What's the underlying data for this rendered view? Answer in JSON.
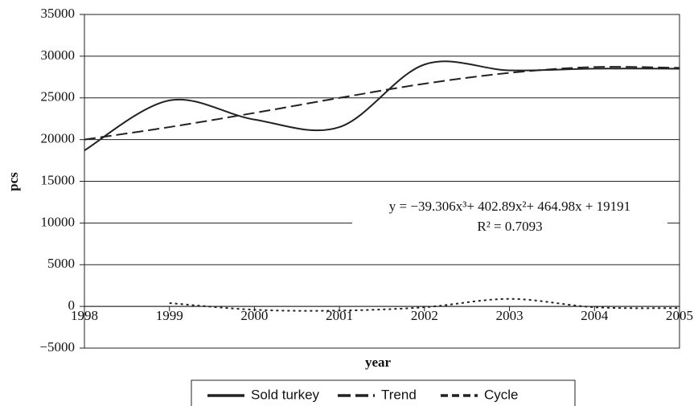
{
  "chart_data": {
    "type": "line",
    "x_label": "year",
    "y_label": "pcs",
    "x": [
      1998,
      1999,
      2000,
      2001,
      2002,
      2003,
      2004,
      2005
    ],
    "series": [
      {
        "name": "Sold turkey",
        "color": "#222222",
        "dash": "solid",
        "values": [
          18700,
          24700,
          22400,
          21500,
          29000,
          28300,
          28500,
          28500
        ]
      },
      {
        "name": "Trend",
        "color": "#222222",
        "dash": "long",
        "values": [
          20000,
          21500,
          23200,
          25000,
          26700,
          28000,
          28700,
          28600
        ]
      },
      {
        "name": "Cycle",
        "color": "#222222",
        "dash": "short",
        "values": [
          null,
          400,
          -400,
          -500,
          -100,
          900,
          -100,
          -200
        ]
      }
    ],
    "xlim": [
      1998,
      2005
    ],
    "xticks": [
      1998,
      1999,
      2000,
      2001,
      2002,
      2003,
      2004,
      2005
    ],
    "ylim": [
      -5000,
      35000
    ],
    "yticks": [
      {
        "value": -5000,
        "label": "−5000"
      },
      0,
      5000,
      10000,
      15000,
      20000,
      25000,
      30000,
      35000
    ],
    "grid": true,
    "annotations": [
      "y = −39.306x³+ 402.89x²+ 464.98x + 19191",
      "R² = 0.7093"
    ],
    "legend": "bottom"
  }
}
